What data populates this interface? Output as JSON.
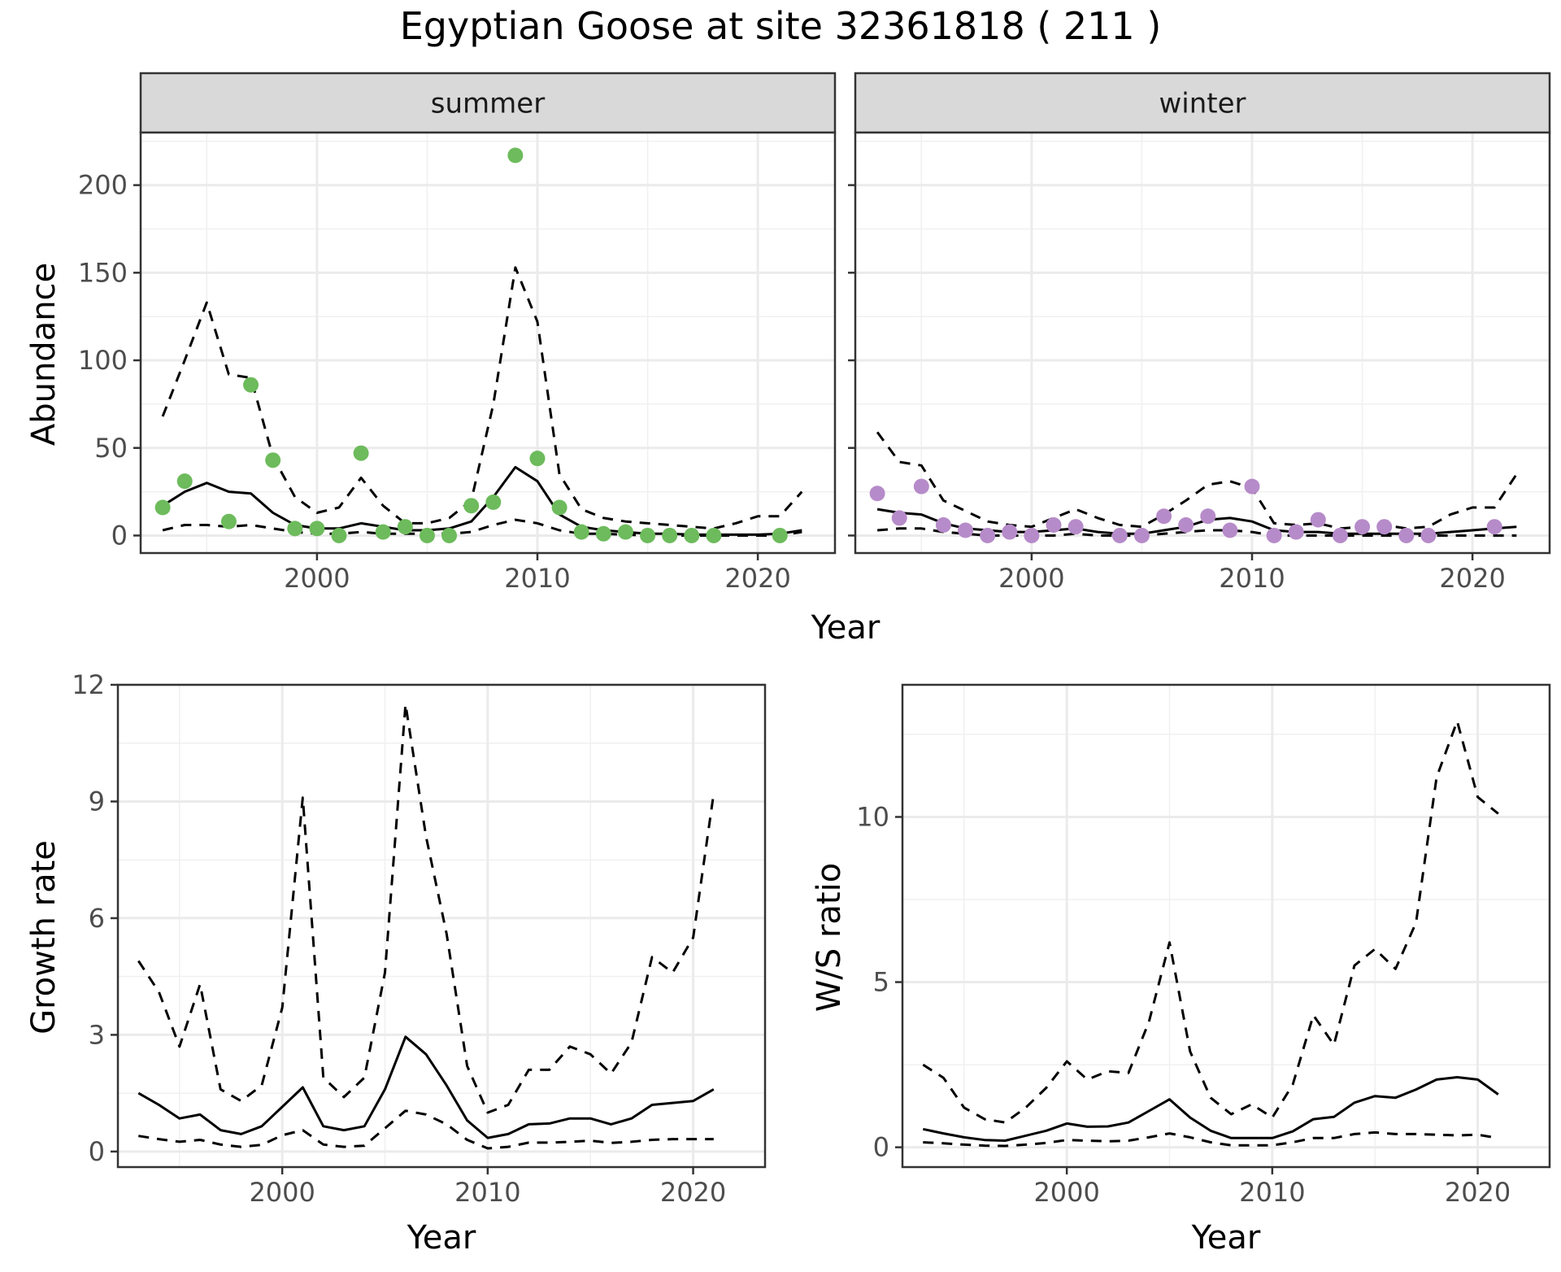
{
  "figure": {
    "title": "Egyptian Goose at site 32361818 ( 211 )"
  },
  "chart_data": [
    {
      "type": "line",
      "panel": "summer",
      "strip_label": "summer",
      "xlabel": "Year",
      "ylabel": "Abundance",
      "xlim": [
        1992,
        2023.5
      ],
      "ylim": [
        -10,
        230
      ],
      "xticks": [
        2000,
        2010,
        2020
      ],
      "yticks": [
        0,
        50,
        100,
        150,
        200
      ],
      "grid": true,
      "point_color": "#6dbb5c",
      "line_color": "#000000",
      "series": [
        {
          "role": "fit",
          "style": "solid",
          "x": [
            1993,
            1994,
            1995,
            1996,
            1997,
            1998,
            1999,
            2000,
            2001,
            2002,
            2003,
            2004,
            2005,
            2006,
            2007,
            2008,
            2009,
            2010,
            2011,
            2012,
            2013,
            2014,
            2015,
            2016,
            2017,
            2018,
            2019,
            2020,
            2021,
            2022
          ],
          "y": [
            17,
            25,
            30,
            25,
            24,
            13,
            6,
            4,
            4,
            7,
            5,
            3,
            3,
            4,
            8,
            22,
            39,
            31,
            12,
            5,
            3,
            2,
            1,
            1,
            0.5,
            0.5,
            0.5,
            0.5,
            1,
            3
          ]
        },
        {
          "role": "upper",
          "style": "dashed",
          "x": [
            1993,
            1994,
            1995,
            1996,
            1997,
            1998,
            1999,
            2000,
            2001,
            2002,
            2003,
            2004,
            2005,
            2006,
            2007,
            2008,
            2009,
            2010,
            2011,
            2012,
            2013,
            2014,
            2015,
            2016,
            2017,
            2018,
            2019,
            2020,
            2021,
            2022
          ],
          "y": [
            68,
            100,
            133,
            92,
            90,
            45,
            22,
            13,
            16,
            33,
            17,
            7,
            7,
            10,
            20,
            75,
            153,
            122,
            35,
            15,
            10,
            8,
            7,
            6,
            5,
            4,
            7,
            11,
            11,
            25
          ]
        },
        {
          "role": "lower",
          "style": "dashed",
          "x": [
            1993,
            1994,
            1995,
            1996,
            1997,
            1998,
            1999,
            2000,
            2001,
            2002,
            2003,
            2004,
            2005,
            2006,
            2007,
            2008,
            2009,
            2010,
            2011,
            2012,
            2013,
            2014,
            2015,
            2016,
            2017,
            2018,
            2019,
            2020,
            2021,
            2022
          ],
          "y": [
            3,
            6,
            6,
            5,
            6,
            4,
            2,
            1,
            1,
            2,
            1,
            1,
            1,
            1,
            2,
            6,
            9,
            7,
            3,
            1,
            1,
            0.5,
            0,
            0,
            0,
            0,
            0,
            0,
            0,
            2
          ]
        },
        {
          "role": "observed",
          "style": "points",
          "x": [
            1993,
            1994,
            1996,
            1997,
            1998,
            1999,
            2000,
            2001,
            2002,
            2003,
            2004,
            2005,
            2006,
            2007,
            2008,
            2009,
            2010,
            2011,
            2012,
            2013,
            2014,
            2015,
            2016,
            2017,
            2018,
            2021
          ],
          "y": [
            16,
            31,
            8,
            86,
            43,
            4,
            4,
            0,
            47,
            2,
            5,
            0,
            0,
            17,
            19,
            217,
            44,
            16,
            2,
            1,
            2,
            0,
            0,
            0,
            0,
            0
          ]
        }
      ]
    },
    {
      "type": "line",
      "panel": "winter",
      "strip_label": "winter",
      "xlabel": "Year",
      "ylabel": "",
      "xlim": [
        1992,
        2023.5
      ],
      "ylim": [
        -10,
        230
      ],
      "xticks": [
        2000,
        2010,
        2020
      ],
      "yticks": [
        0,
        50,
        100,
        150,
        200
      ],
      "grid": true,
      "point_color": "#b68bc9",
      "line_color": "#000000",
      "series": [
        {
          "role": "fit",
          "style": "solid",
          "x": [
            1993,
            1994,
            1995,
            1996,
            1997,
            1998,
            1999,
            2000,
            2001,
            2002,
            2003,
            2004,
            2005,
            2006,
            2007,
            2008,
            2009,
            2010,
            2011,
            2012,
            2013,
            2014,
            2015,
            2016,
            2017,
            2018,
            2019,
            2020,
            2021,
            2022
          ],
          "y": [
            15,
            13,
            12,
            7,
            4,
            3,
            2,
            2,
            3,
            4,
            2,
            1,
            1,
            3,
            5,
            9,
            10,
            8,
            3,
            2,
            2,
            1,
            1,
            1,
            1,
            1,
            2,
            3,
            4,
            5
          ]
        },
        {
          "role": "upper",
          "style": "dashed",
          "x": [
            1993,
            1994,
            1995,
            1996,
            1997,
            1998,
            1999,
            2000,
            2001,
            2002,
            2003,
            2004,
            2005,
            2006,
            2007,
            2008,
            2009,
            2010,
            2011,
            2012,
            2013,
            2014,
            2015,
            2016,
            2017,
            2018,
            2019,
            2020,
            2021,
            2022
          ],
          "y": [
            59,
            42,
            40,
            20,
            14,
            8,
            6,
            5,
            10,
            15,
            10,
            6,
            5,
            12,
            20,
            29,
            31,
            27,
            7,
            6,
            7,
            4,
            5,
            6,
            4,
            5,
            12,
            16,
            16,
            35
          ]
        },
        {
          "role": "lower",
          "style": "dashed",
          "x": [
            1993,
            1994,
            1995,
            1996,
            1997,
            1998,
            1999,
            2000,
            2001,
            2002,
            2003,
            2004,
            2005,
            2006,
            2007,
            2008,
            2009,
            2010,
            2011,
            2012,
            2013,
            2014,
            2015,
            2016,
            2017,
            2018,
            2019,
            2020,
            2021,
            2022
          ],
          "y": [
            3,
            4,
            4,
            2,
            1,
            0,
            0,
            0,
            0,
            1,
            0,
            0,
            0,
            1,
            2,
            3,
            3,
            2,
            0,
            0,
            0,
            0,
            0,
            0,
            0,
            0,
            0,
            0,
            0,
            0
          ]
        },
        {
          "role": "observed",
          "style": "points",
          "x": [
            1993,
            1994,
            1995,
            1996,
            1997,
            1998,
            1999,
            2000,
            2001,
            2002,
            2004,
            2005,
            2006,
            2007,
            2008,
            2009,
            2010,
            2011,
            2012,
            2013,
            2014,
            2015,
            2016,
            2017,
            2018,
            2021
          ],
          "y": [
            24,
            10,
            28,
            6,
            3,
            0,
            2,
            0,
            6,
            5,
            0,
            0,
            11,
            6,
            11,
            3,
            28,
            0,
            2,
            9,
            0,
            5,
            5,
            0,
            0,
            5
          ]
        }
      ]
    },
    {
      "type": "line",
      "panel": "growth",
      "xlabel": "Year",
      "ylabel": "Growth rate",
      "xlim": [
        1992,
        2023.5
      ],
      "ylim": [
        -0.4,
        12
      ],
      "xticks": [
        2000,
        2010,
        2020
      ],
      "yticks": [
        0,
        3,
        6,
        9,
        12
      ],
      "grid": true,
      "line_color": "#000000",
      "series": [
        {
          "role": "fit",
          "style": "solid",
          "x": [
            1993,
            1994,
            1995,
            1996,
            1997,
            1998,
            1999,
            2000,
            2001,
            2002,
            2003,
            2004,
            2005,
            2006,
            2007,
            2008,
            2009,
            2010,
            2011,
            2012,
            2013,
            2014,
            2015,
            2016,
            2017,
            2018,
            2019,
            2020,
            2021
          ],
          "y": [
            1.5,
            1.2,
            0.85,
            0.95,
            0.55,
            0.45,
            0.65,
            1.15,
            1.65,
            0.65,
            0.55,
            0.65,
            1.6,
            2.95,
            2.5,
            1.7,
            0.8,
            0.35,
            0.45,
            0.7,
            0.72,
            0.85,
            0.85,
            0.7,
            0.85,
            1.2,
            1.25,
            1.3,
            1.6
          ]
        },
        {
          "role": "upper",
          "style": "dashed",
          "x": [
            1993,
            1994,
            1995,
            1996,
            1997,
            1998,
            1999,
            2000,
            2001,
            2002,
            2003,
            2004,
            2005,
            2006,
            2007,
            2008,
            2009,
            2010,
            2011,
            2012,
            2013,
            2014,
            2015,
            2016,
            2017,
            2018,
            2019,
            2020,
            2021
          ],
          "y": [
            4.9,
            4.1,
            2.7,
            4.3,
            1.6,
            1.3,
            1.7,
            3.7,
            9.1,
            1.9,
            1.4,
            1.9,
            4.6,
            11.5,
            8.1,
            5.6,
            2.2,
            1.0,
            1.2,
            2.1,
            2.1,
            2.7,
            2.5,
            2.0,
            2.8,
            5.0,
            4.6,
            5.5,
            9.2
          ]
        },
        {
          "role": "lower",
          "style": "dashed",
          "x": [
            1993,
            1994,
            1995,
            1996,
            1997,
            1998,
            1999,
            2000,
            2001,
            2002,
            2003,
            2004,
            2005,
            2006,
            2007,
            2008,
            2009,
            2010,
            2011,
            2012,
            2013,
            2014,
            2015,
            2016,
            2017,
            2018,
            2019,
            2020,
            2021
          ],
          "y": [
            0.4,
            0.32,
            0.25,
            0.3,
            0.18,
            0.12,
            0.17,
            0.42,
            0.55,
            0.18,
            0.12,
            0.15,
            0.6,
            1.05,
            0.95,
            0.7,
            0.3,
            0.08,
            0.12,
            0.23,
            0.23,
            0.25,
            0.28,
            0.22,
            0.25,
            0.3,
            0.32,
            0.32,
            0.32
          ]
        }
      ]
    },
    {
      "type": "line",
      "panel": "ws-ratio",
      "xlabel": "Year",
      "ylabel": "W/S ratio",
      "xlim": [
        1992,
        2023.5
      ],
      "ylim": [
        -0.6,
        14
      ],
      "xticks": [
        2000,
        2010,
        2020
      ],
      "yticks": [
        0,
        5,
        10
      ],
      "grid": true,
      "line_color": "#000000",
      "series": [
        {
          "role": "fit",
          "style": "solid",
          "x": [
            1993,
            1994,
            1995,
            1996,
            1997,
            1998,
            1999,
            2000,
            2001,
            2002,
            2003,
            2004,
            2005,
            2006,
            2007,
            2008,
            2009,
            2010,
            2011,
            2012,
            2013,
            2014,
            2015,
            2016,
            2017,
            2018,
            2019,
            2020,
            2021
          ],
          "y": [
            0.55,
            0.42,
            0.3,
            0.22,
            0.2,
            0.35,
            0.5,
            0.72,
            0.62,
            0.63,
            0.75,
            1.1,
            1.45,
            0.9,
            0.5,
            0.28,
            0.28,
            0.28,
            0.48,
            0.85,
            0.92,
            1.35,
            1.55,
            1.5,
            1.75,
            2.05,
            2.12,
            2.05,
            1.6
          ]
        },
        {
          "role": "upper",
          "style": "dashed",
          "x": [
            1993,
            1994,
            1995,
            1996,
            1997,
            1998,
            1999,
            2000,
            2001,
            2002,
            2003,
            2004,
            2005,
            2006,
            2007,
            2008,
            2009,
            2010,
            2011,
            2012,
            2013,
            2014,
            2015,
            2016,
            2017,
            2018,
            2019,
            2020,
            2021
          ],
          "y": [
            2.5,
            2.1,
            1.2,
            0.85,
            0.75,
            1.2,
            1.8,
            2.6,
            2.05,
            2.3,
            2.25,
            3.8,
            6.2,
            2.9,
            1.5,
            1.0,
            1.3,
            0.9,
            1.9,
            4.0,
            3.1,
            5.5,
            6.0,
            5.4,
            6.8,
            11.2,
            12.9,
            10.6,
            10.1
          ]
        },
        {
          "role": "lower",
          "style": "dashed",
          "x": [
            1993,
            1994,
            1995,
            1996,
            1997,
            1998,
            1999,
            2000,
            2001,
            2002,
            2003,
            2004,
            2005,
            2006,
            2007,
            2008,
            2009,
            2010,
            2011,
            2012,
            2013,
            2014,
            2015,
            2016,
            2017,
            2018,
            2019,
            2020,
            2021
          ],
          "y": [
            0.15,
            0.12,
            0.08,
            0.05,
            0.04,
            0.08,
            0.13,
            0.22,
            0.2,
            0.18,
            0.2,
            0.3,
            0.42,
            0.3,
            0.15,
            0.06,
            0.06,
            0.06,
            0.15,
            0.28,
            0.28,
            0.4,
            0.45,
            0.4,
            0.4,
            0.38,
            0.36,
            0.38,
            0.28
          ]
        }
      ]
    }
  ]
}
